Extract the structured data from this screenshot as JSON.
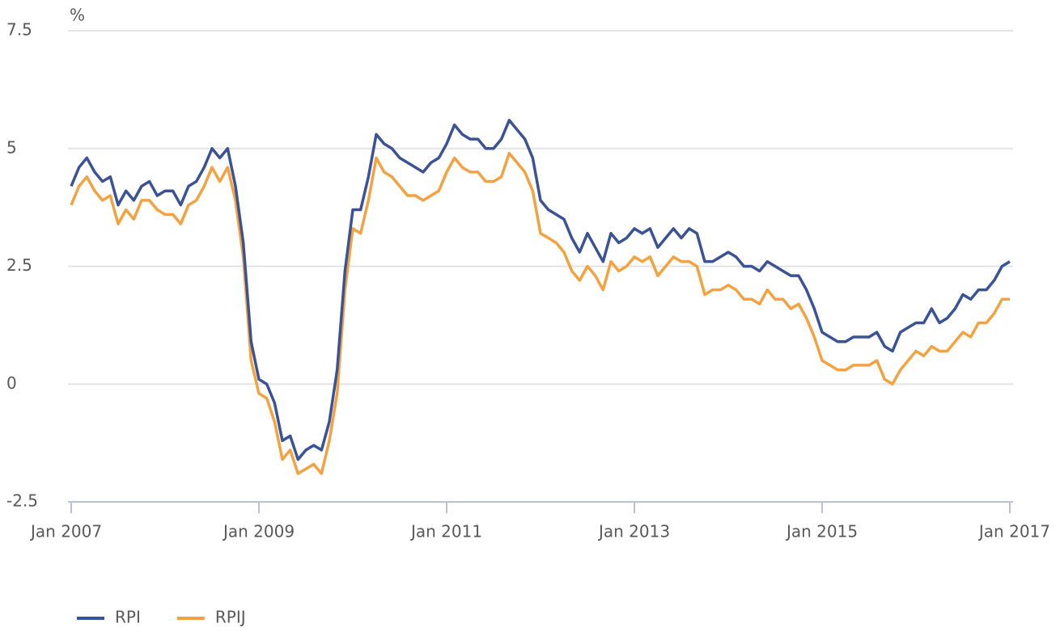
{
  "chart_data": {
    "type": "line",
    "y_label": "%",
    "categories": [
      "Jan 2007",
      null,
      null,
      null,
      null,
      null,
      null,
      null,
      null,
      null,
      null,
      null,
      null,
      null,
      null,
      null,
      null,
      null,
      null,
      null,
      null,
      null,
      null,
      null,
      "Jan 2009",
      null,
      null,
      null,
      null,
      null,
      null,
      null,
      null,
      null,
      null,
      null,
      null,
      null,
      null,
      null,
      null,
      null,
      null,
      null,
      null,
      null,
      null,
      null,
      "Jan 2011",
      null,
      null,
      null,
      null,
      null,
      null,
      null,
      null,
      null,
      null,
      null,
      null,
      null,
      null,
      null,
      null,
      null,
      null,
      null,
      null,
      null,
      null,
      null,
      "Jan 2013",
      null,
      null,
      null,
      null,
      null,
      null,
      null,
      null,
      null,
      null,
      null,
      null,
      null,
      null,
      null,
      null,
      null,
      null,
      null,
      null,
      null,
      null,
      null,
      "Jan 2015",
      null,
      null,
      null,
      null,
      null,
      null,
      null,
      null,
      null,
      null,
      null,
      null,
      null,
      null,
      null,
      null,
      null,
      null,
      null,
      null,
      null,
      null,
      null,
      "Jan 2017"
    ],
    "series": [
      {
        "name": "RPI",
        "color": "#3a5396",
        "values": [
          4.2,
          4.6,
          4.8,
          4.5,
          4.3,
          4.4,
          3.8,
          4.1,
          3.9,
          4.2,
          4.3,
          4.0,
          4.1,
          4.1,
          3.8,
          4.2,
          4.3,
          4.6,
          5.0,
          4.8,
          5.0,
          4.2,
          3.0,
          0.9,
          0.1,
          0.0,
          -0.4,
          -1.2,
          -1.1,
          -1.6,
          -1.4,
          -1.3,
          -1.4,
          -0.8,
          0.3,
          2.4,
          3.7,
          3.7,
          4.4,
          5.3,
          5.1,
          5.0,
          4.8,
          4.7,
          4.6,
          4.5,
          4.7,
          4.8,
          5.1,
          5.5,
          5.3,
          5.2,
          5.2,
          5.0,
          5.0,
          5.2,
          5.6,
          5.4,
          5.2,
          4.8,
          3.9,
          3.7,
          3.6,
          3.5,
          3.1,
          2.8,
          3.2,
          2.9,
          2.6,
          3.2,
          3.0,
          3.1,
          3.3,
          3.2,
          3.3,
          2.9,
          3.1,
          3.3,
          3.1,
          3.3,
          3.2,
          2.6,
          2.6,
          2.7,
          2.8,
          2.7,
          2.5,
          2.5,
          2.4,
          2.6,
          2.5,
          2.4,
          2.3,
          2.3,
          2.0,
          1.6,
          1.1,
          1.0,
          0.9,
          0.9,
          1.0,
          1.0,
          1.0,
          1.1,
          0.8,
          0.7,
          1.1,
          1.2,
          1.3,
          1.3,
          1.6,
          1.3,
          1.4,
          1.6,
          1.9,
          1.8,
          2.0,
          2.0,
          2.2,
          2.5,
          2.6
        ]
      },
      {
        "name": "RPIJ",
        "color": "#f4a240",
        "values": [
          3.8,
          4.2,
          4.4,
          4.1,
          3.9,
          4.0,
          3.4,
          3.7,
          3.5,
          3.9,
          3.9,
          3.7,
          3.6,
          3.6,
          3.4,
          3.8,
          3.9,
          4.2,
          4.6,
          4.3,
          4.6,
          3.9,
          2.7,
          0.5,
          -0.2,
          -0.3,
          -0.8,
          -1.6,
          -1.4,
          -1.9,
          -1.8,
          -1.7,
          -1.9,
          -1.2,
          -0.2,
          2.0,
          3.3,
          3.2,
          3.9,
          4.8,
          4.5,
          4.4,
          4.2,
          4.0,
          4.0,
          3.9,
          4.0,
          4.1,
          4.5,
          4.8,
          4.6,
          4.5,
          4.5,
          4.3,
          4.3,
          4.4,
          4.9,
          4.7,
          4.5,
          4.1,
          3.2,
          3.1,
          3.0,
          2.8,
          2.4,
          2.2,
          2.5,
          2.3,
          2.0,
          2.6,
          2.4,
          2.5,
          2.7,
          2.6,
          2.7,
          2.3,
          2.5,
          2.7,
          2.6,
          2.6,
          2.5,
          1.9,
          2.0,
          2.0,
          2.1,
          2.0,
          1.8,
          1.8,
          1.7,
          2.0,
          1.8,
          1.8,
          1.6,
          1.7,
          1.4,
          1.0,
          0.5,
          0.4,
          0.3,
          0.3,
          0.4,
          0.4,
          0.4,
          0.5,
          0.1,
          0.0,
          0.3,
          0.5,
          0.7,
          0.6,
          0.8,
          0.7,
          0.7,
          0.9,
          1.1,
          1.0,
          1.3,
          1.3,
          1.5,
          1.8,
          1.8
        ]
      }
    ],
    "ylim": [
      -2.5,
      7.5
    ],
    "yticks": [
      7.5,
      5,
      2.5,
      0,
      -2.5
    ],
    "grid": true,
    "legend": "bottom-left"
  }
}
